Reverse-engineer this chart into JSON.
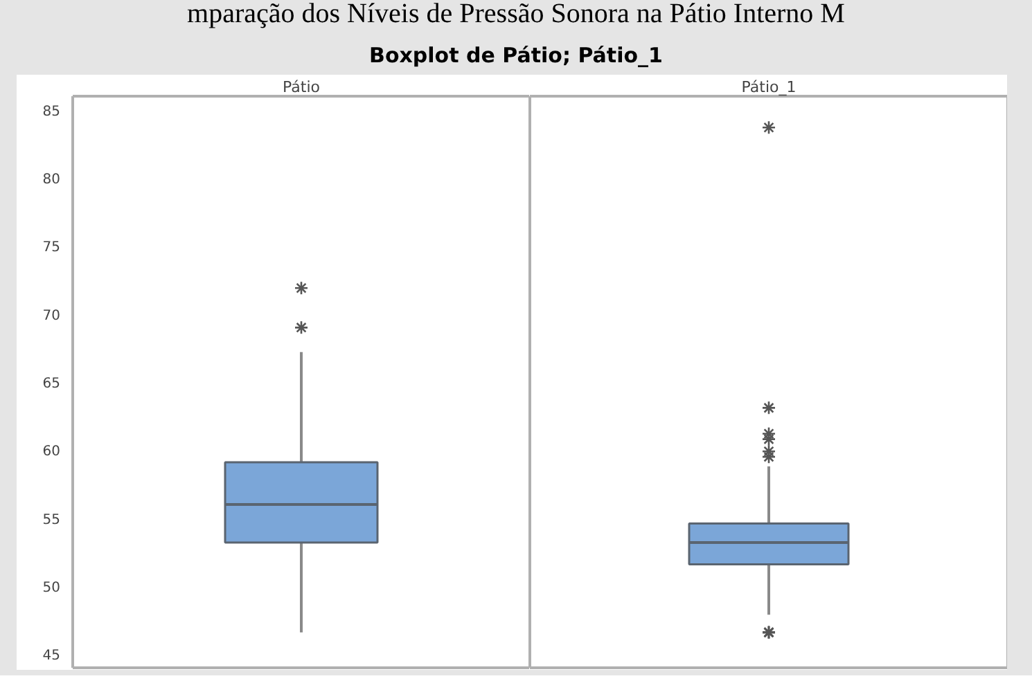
{
  "chart_data": {
    "type": "box",
    "title": "Boxplot de Pátio; Pátio_1",
    "annotations": [
      "mparação dos Níveis de Pressão Sonora na Pátio Interno M"
    ],
    "categories": [
      "Pátio",
      "Pátio_1"
    ],
    "color": "#7ba6d8",
    "ylim": [
      44,
      86
    ],
    "yticks": [
      45,
      50,
      55,
      60,
      65,
      70,
      75,
      80,
      85
    ],
    "grid": false,
    "boxes": [
      {
        "low": 46.6,
        "q1": 53.2,
        "median": 56.0,
        "q3": 59.1,
        "high": 67.2,
        "outliers": [
          69.0,
          71.9
        ]
      },
      {
        "low": 47.9,
        "q1": 51.6,
        "median": 53.2,
        "q3": 54.6,
        "high": 58.8,
        "outliers": [
          46.6,
          46.6,
          46.6,
          59.5,
          59.9,
          60.8,
          61.2,
          63.1,
          83.7
        ]
      }
    ]
  }
}
